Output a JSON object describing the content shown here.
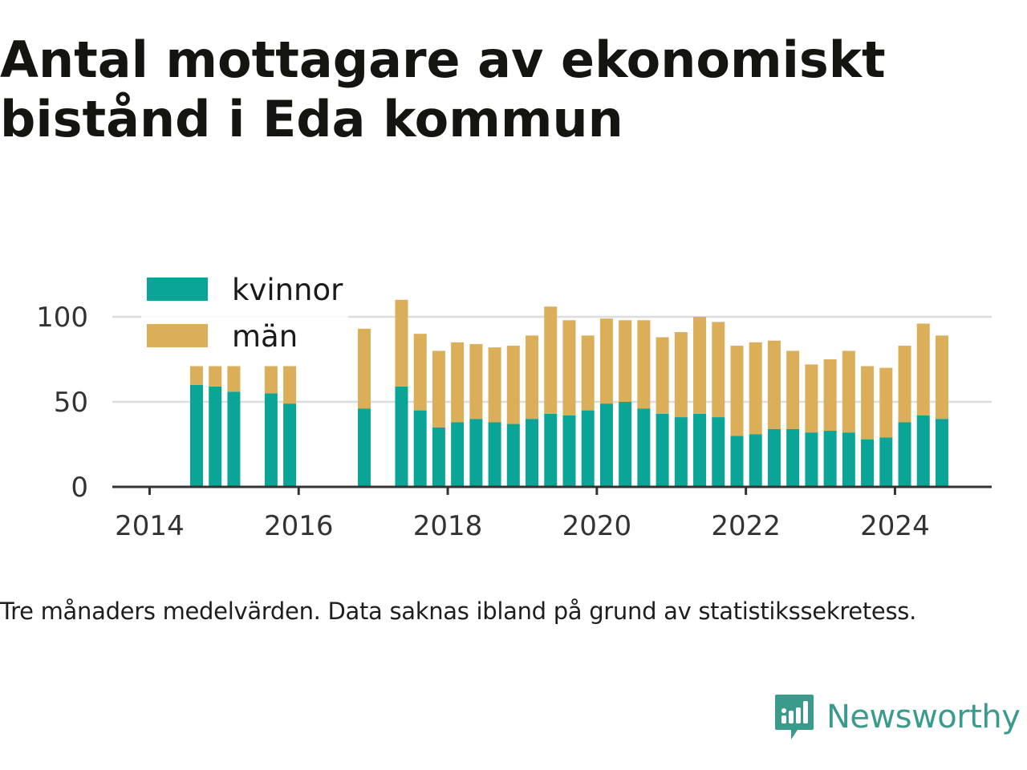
{
  "title": "Antal mottagare av ekonomiskt bistånd i Eda kommun",
  "note": "Tre månaders medelvärden. Data saknas ibland på grund av statistikssekretess.",
  "brand": {
    "name": "Newsworthy",
    "logo_icon": "bar-chart-speech-bubble-icon"
  },
  "colors": {
    "kvinnor": "#0aa596",
    "man": "#dbae5a",
    "grid": "#dddddd",
    "axis": "#333333",
    "text": "#333333"
  },
  "chart_data": {
    "type": "bar",
    "stacked": true,
    "x_unit": "year (quarter midpoints)",
    "xlim": [
      2013.5,
      2025.2
    ],
    "ylim": [
      0,
      125
    ],
    "xticks": [
      2014,
      2016,
      2018,
      2020,
      2022,
      2024
    ],
    "yticks": [
      0,
      50,
      100
    ],
    "xtick_labels": [
      "2014",
      "2016",
      "2018",
      "2020",
      "2022",
      "2024"
    ],
    "ytick_labels": [
      "0",
      "50",
      "100"
    ],
    "grid": true,
    "legend_position": "top-left",
    "x": [
      2014.63,
      2014.88,
      2015.13,
      2015.63,
      2015.88,
      2016.88,
      2017.38,
      2017.63,
      2017.88,
      2018.13,
      2018.38,
      2018.63,
      2018.88,
      2019.13,
      2019.38,
      2019.63,
      2019.88,
      2020.13,
      2020.38,
      2020.63,
      2020.88,
      2021.13,
      2021.38,
      2021.63,
      2021.88,
      2022.13,
      2022.38,
      2022.63,
      2022.88,
      2023.13,
      2023.38,
      2023.63,
      2023.88,
      2024.13,
      2024.38,
      2024.63
    ],
    "series": [
      {
        "name": "kvinnor",
        "values": [
          60,
          59,
          56,
          55,
          49,
          46,
          59,
          45,
          35,
          38,
          40,
          38,
          37,
          40,
          43,
          42,
          45,
          49,
          50,
          46,
          43,
          41,
          43,
          41,
          30,
          31,
          34,
          34,
          32,
          33,
          32,
          28,
          29,
          38,
          42,
          40
        ]
      },
      {
        "name": "män",
        "values": [
          11,
          12,
          15,
          16,
          22,
          47,
          51,
          45,
          45,
          47,
          44,
          44,
          46,
          49,
          63,
          56,
          44,
          50,
          48,
          52,
          45,
          50,
          57,
          56,
          53,
          54,
          52,
          46,
          40,
          42,
          48,
          43,
          41,
          45,
          54,
          49
        ]
      }
    ]
  }
}
